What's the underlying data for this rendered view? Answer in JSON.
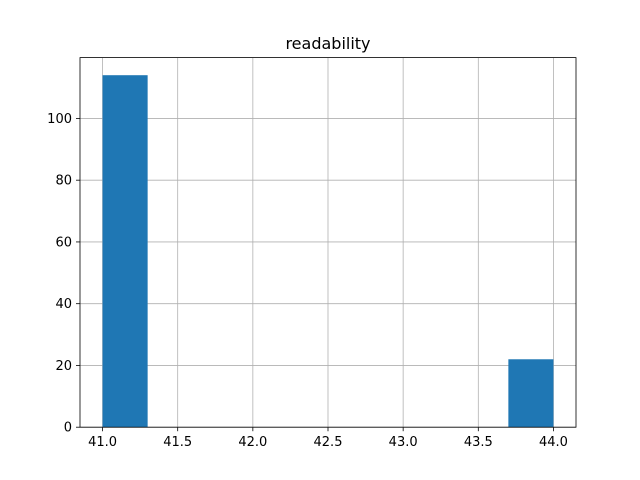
{
  "chart_data": {
    "type": "histogram",
    "title": "readability",
    "bins": [
      41,
      41.3,
      41.6,
      41.9,
      42.2,
      42.5,
      42.8,
      43.1,
      43.4,
      43.7,
      44
    ],
    "values": [
      114,
      0,
      0,
      0,
      0,
      0,
      0,
      0,
      0,
      22
    ],
    "color": "#1f77b4",
    "xlim": [
      40.85,
      44.15
    ],
    "xticks": [
      {
        "value": 41,
        "label": "41.0"
      },
      41.5,
      {
        "value": 42,
        "label": "42.0"
      },
      42.5,
      {
        "value": 43,
        "label": "43.0"
      },
      43.5,
      {
        "value": 44,
        "label": "44.0"
      }
    ],
    "ylim": [
      0,
      119.7
    ],
    "yticks": [
      0,
      20,
      40,
      60,
      80,
      100
    ],
    "grid": true
  }
}
